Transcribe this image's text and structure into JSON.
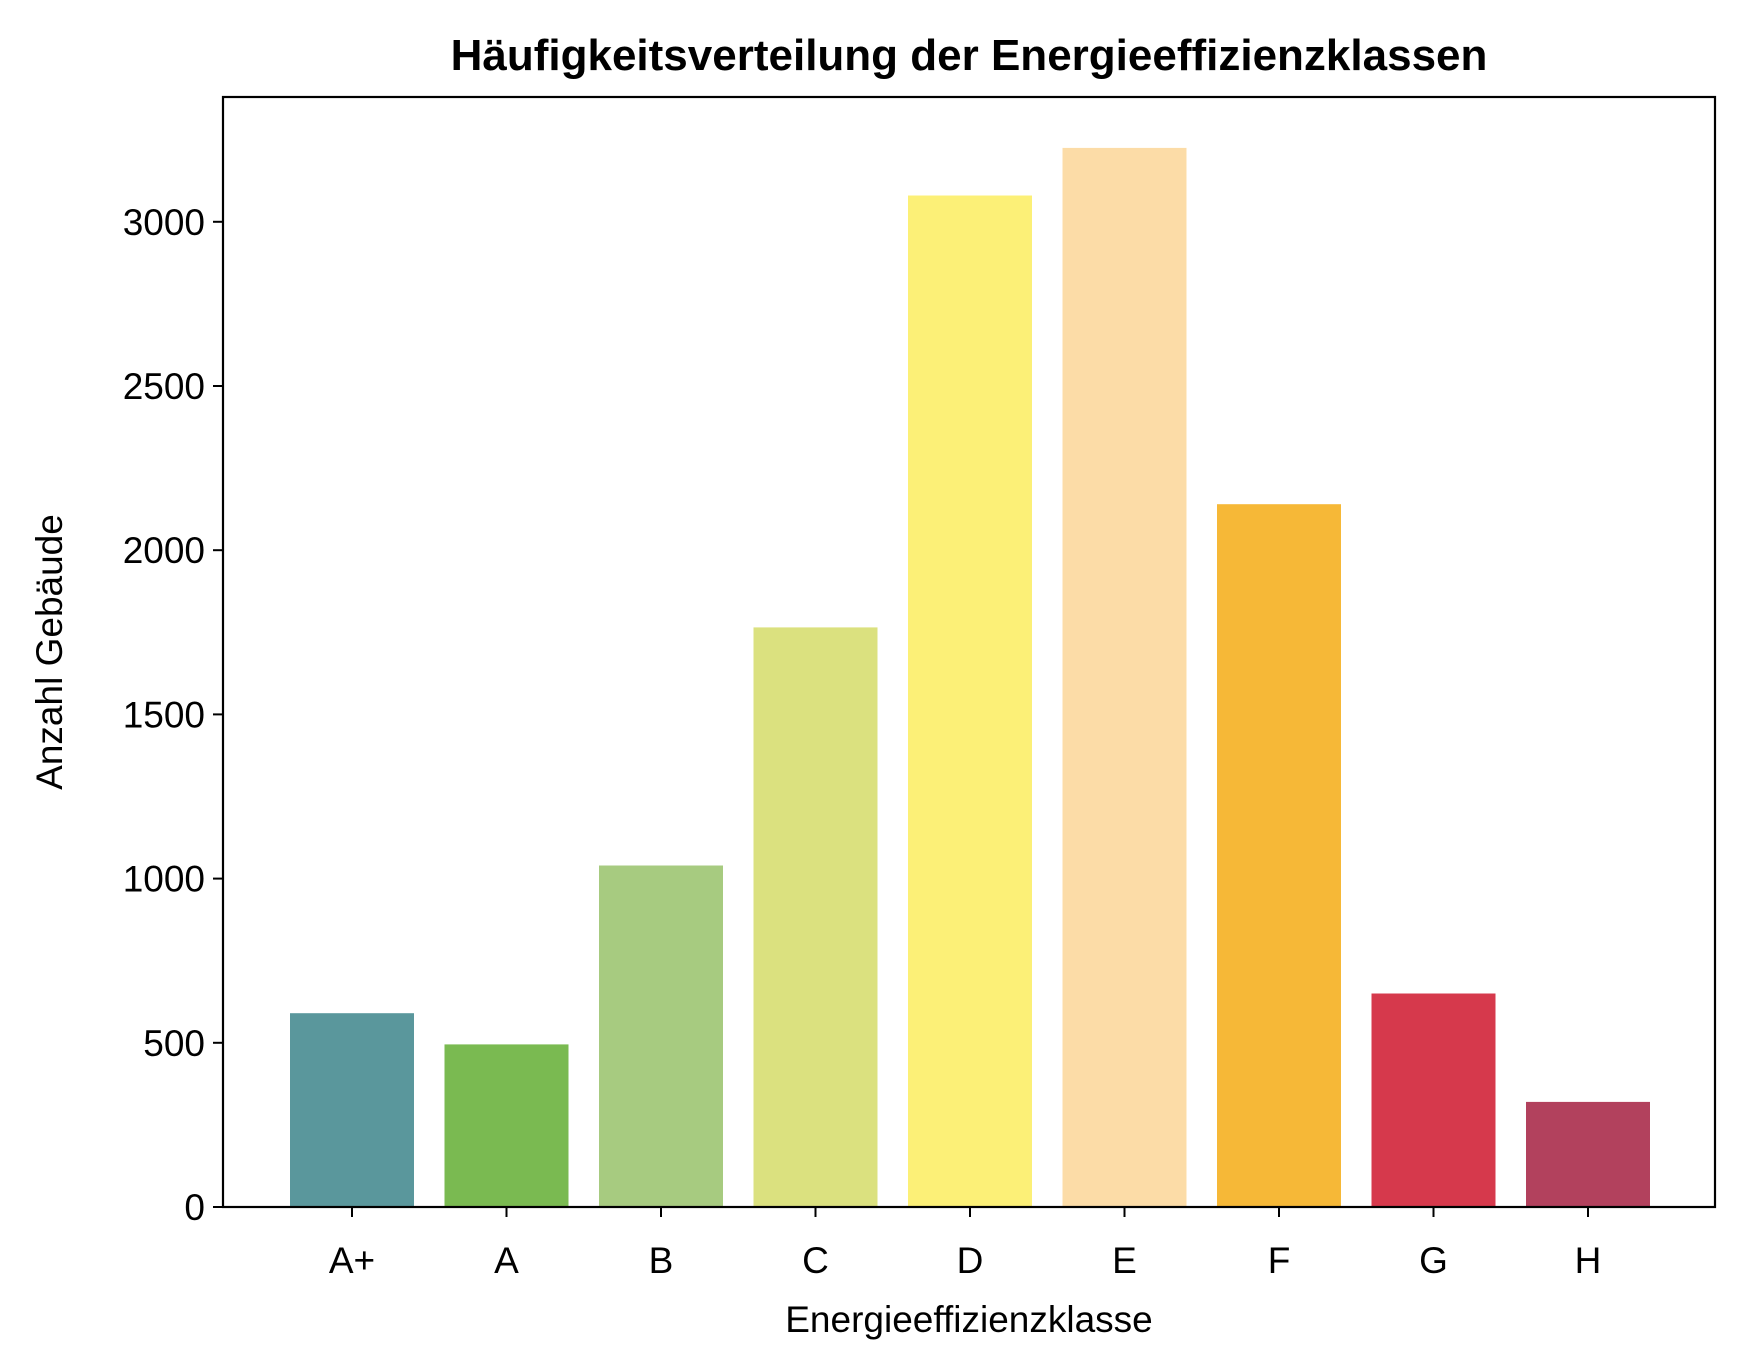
{
  "chart_data": {
    "type": "bar",
    "title": "Häufigkeitsverteilung der Energieeffizienzklassen",
    "xlabel": "Energieeffizienzklasse",
    "ylabel": "Anzahl Gebäude",
    "categories": [
      "A+",
      "A",
      "B",
      "C",
      "D",
      "E",
      "F",
      "G",
      "H"
    ],
    "values": [
      590,
      495,
      1040,
      1765,
      3080,
      3225,
      2140,
      650,
      320
    ],
    "colors": [
      "#5a979c",
      "#7aba51",
      "#a7cb80",
      "#dbe17f",
      "#fcf077",
      "#fcdca7",
      "#f6b837",
      "#d6394c",
      "#b2415d"
    ],
    "ylim": [
      0,
      3380
    ],
    "yticks": [
      0,
      500,
      1000,
      1500,
      2000,
      2500,
      3000
    ],
    "ytick_labels": [
      "0",
      "500",
      "1000",
      "1500",
      "2000",
      "2500",
      "3000"
    ],
    "grid": false,
    "legend": "none"
  }
}
